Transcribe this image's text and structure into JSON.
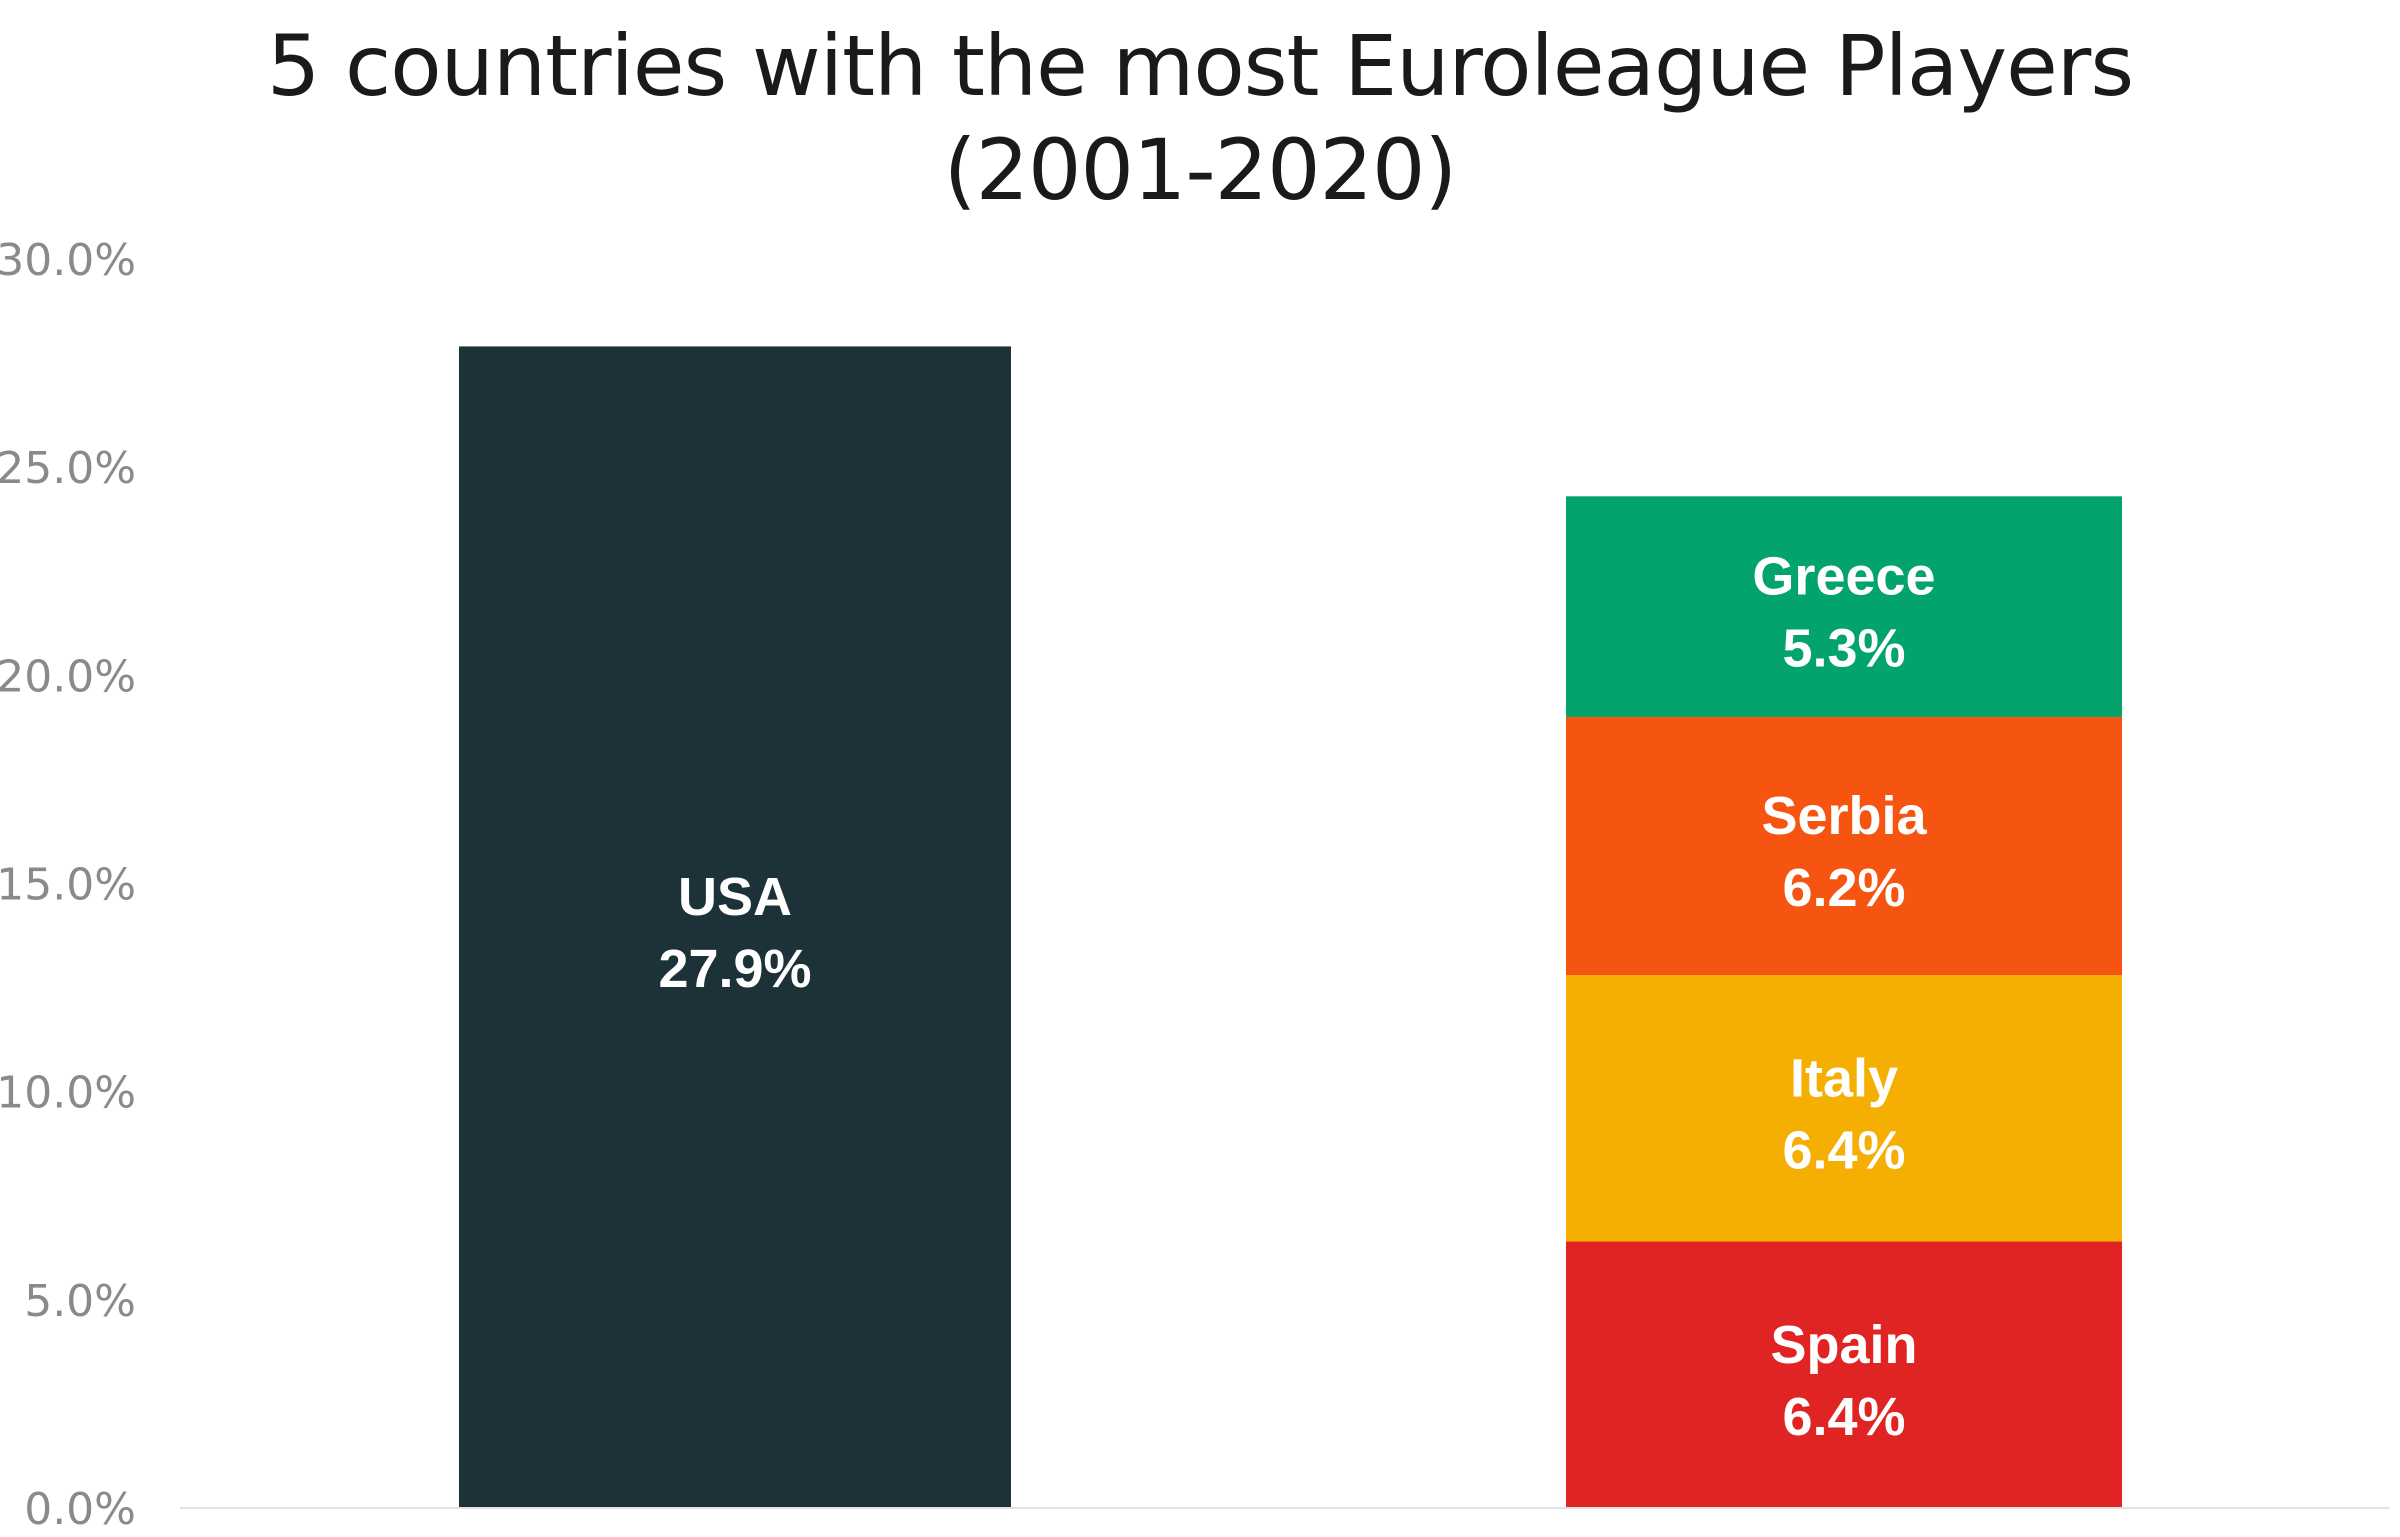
{
  "chart_data": {
    "type": "bar",
    "title_lines": [
      "5 countries with the most Euroleague Players",
      "(2001-2020)"
    ],
    "ylim": [
      0,
      30
    ],
    "yticks": [
      0,
      5,
      10,
      15,
      20,
      25,
      30
    ],
    "ytick_labels": [
      "0.0%",
      "5.0%",
      "10.0%",
      "15.0%",
      "20.0%",
      "25.0%",
      "30.0%"
    ],
    "grid": false,
    "legend": "none",
    "bars": [
      {
        "segments": [
          {
            "label": "USA",
            "value": 27.9,
            "value_label": "27.9%",
            "color": "#1c3238"
          }
        ]
      },
      {
        "segments": [
          {
            "label": "Spain",
            "value": 6.4,
            "value_label": "6.4%",
            "color": "#e02424"
          },
          {
            "label": "Italy",
            "value": 6.4,
            "value_label": "6.4%",
            "color": "#f5ae02"
          },
          {
            "label": "Serbia",
            "value": 6.2,
            "value_label": "6.2%",
            "color": "#f55511"
          },
          {
            "label": "Greece",
            "value": 5.3,
            "value_label": "5.3%",
            "color": "#02a46b"
          }
        ]
      }
    ]
  }
}
